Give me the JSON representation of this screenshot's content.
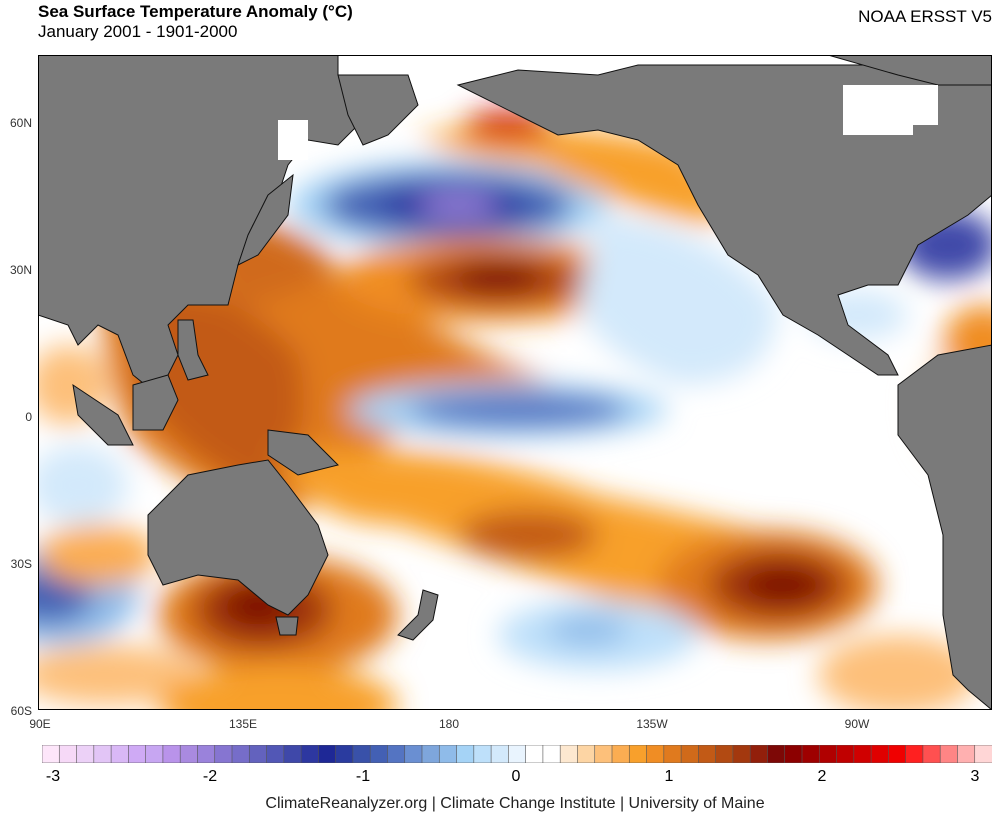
{
  "header": {
    "title": "Sea Surface Temperature Anomaly (°C)",
    "subtitle": "January 2001 - 1901-2000",
    "source": "NOAA ERSST V5"
  },
  "map": {
    "land_color": "#7a7a7a",
    "lat_labels": [
      "60N",
      "30N",
      "0",
      "30S",
      "60S"
    ],
    "lon_labels": [
      "90E",
      "135E",
      "180",
      "135W",
      "90W"
    ],
    "anomaly_features": [
      {
        "name": "north-pacific-cold-pool",
        "value": -2.3
      },
      {
        "name": "subtropical-north-pacific-warm-pool",
        "value": 1.8
      },
      {
        "name": "gulf-of-alaska-warm-spot",
        "value": 2.4
      },
      {
        "name": "equatorial-central-pacific-cold-tongue",
        "value": -1.4
      },
      {
        "name": "south-pacific-warm-pool",
        "value": 1.7
      },
      {
        "name": "tasman-sea-warm-pool",
        "value": 1.5
      },
      {
        "name": "southern-indian-ocean-cold-pool",
        "value": -1.6
      },
      {
        "name": "us-east-coast-cold-anomaly",
        "value": -1.5
      },
      {
        "name": "south-pacific-cold-patch",
        "value": -0.9
      }
    ]
  },
  "colorbar": {
    "min": -3,
    "max": 3,
    "tick_labels": [
      "-3",
      "-2",
      "-1",
      "0",
      "1",
      "2",
      "3"
    ],
    "colors": [
      "#fde6fa",
      "#f6d9f7",
      "#ecd1f7",
      "#e2c5f6",
      "#d9b8f6",
      "#cfaaf5",
      "#c7a6f2",
      "#b993ea",
      "#a98ae0",
      "#9a82db",
      "#8675d1",
      "#766dc9",
      "#6362be",
      "#5257b6",
      "#3f48a9",
      "#2d37a0",
      "#1e2896",
      "#2a3b9f",
      "#3951a9",
      "#4360b4",
      "#5474c2",
      "#6a8fd2",
      "#7ea6dc",
      "#8fbbe9",
      "#a5d3f6",
      "#bee0fa",
      "#d3e9fb",
      "#e9f4fe",
      "#ffffff",
      "#ffffff",
      "#fde8d0",
      "#fdd5a4",
      "#fdc07a",
      "#fbad52",
      "#f8a02c",
      "#f08d24",
      "#e07a1e",
      "#d06a1a",
      "#c25a16",
      "#b24a12",
      "#a3380e",
      "#921f0b",
      "#7d0806",
      "#8c0000",
      "#9e0000",
      "#b00000",
      "#c00000",
      "#d00000",
      "#e00000",
      "#f00000",
      "#ff2020",
      "#ff5050",
      "#ff8585",
      "#ffb0b0",
      "#ffd6d6"
    ]
  },
  "footer": {
    "credit": "ClimateReanalyzer.org | Climate Change Institute | University of Maine"
  }
}
